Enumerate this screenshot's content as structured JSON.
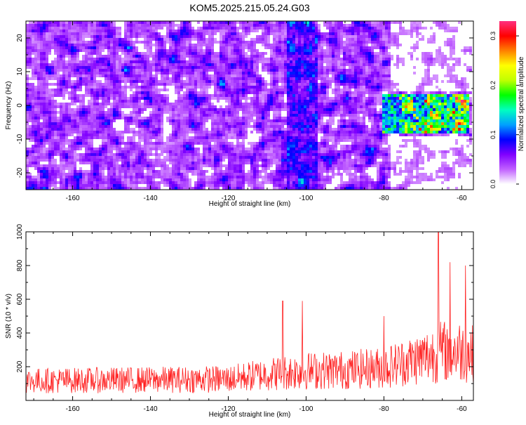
{
  "title": "KOM5.2025.215.05.24.G03",
  "chart_data": [
    {
      "type": "heatmap",
      "xlabel": "Height of straight line (km)",
      "ylabel": "Frequency (Hz)",
      "xlim": [
        -172,
        -57
      ],
      "ylim": [
        -25,
        25
      ],
      "x_ticks": [
        -160,
        -140,
        -120,
        -100,
        -80,
        -60
      ],
      "y_ticks": [
        -20,
        -10,
        0,
        10,
        20
      ],
      "colorbar": {
        "label": "Normalized spectral amplitude",
        "range": [
          0,
          0.33
        ],
        "ticks": [
          "0.0",
          "0.1",
          "0.2",
          "0.3"
        ],
        "colormap": [
          "#ffffff",
          "#c060ff",
          "#8000ff",
          "#0000ff",
          "#00a0ff",
          "#00ffc0",
          "#00ff00",
          "#c0ff00",
          "#ffff00",
          "#ff8000",
          "#ff0000",
          "#ff3080"
        ]
      },
      "features": [
        {
          "description_x_km": [
            -80,
            -58
          ],
          "freq_hz": [
            -8,
            3
          ],
          "amplitude": 0.3
        },
        {
          "description_x_km": [
            -105,
            -97
          ],
          "freq_hz": [
            -25,
            25
          ],
          "amplitude": 0.15
        }
      ]
    },
    {
      "type": "line",
      "xlabel": "Height of straight line (km)",
      "ylabel": "SNR (10 * v/v)",
      "xlim": [
        -172,
        -57
      ],
      "ylim": [
        0,
        1000
      ],
      "x_ticks": [
        -160,
        -140,
        -120,
        -100,
        -80,
        -60
      ],
      "y_ticks": [
        200,
        400,
        600,
        800,
        1000
      ],
      "series": [
        {
          "color": "#ff2020",
          "baseline_points": [
            [
              -172,
              120
            ],
            [
              -140,
              125
            ],
            [
              -120,
              130
            ],
            [
              -110,
              160
            ],
            [
              -100,
              180
            ],
            [
              -90,
              185
            ],
            [
              -80,
              200
            ],
            [
              -75,
              230
            ],
            [
              -70,
              260
            ],
            [
              -65,
              300
            ],
            [
              -60,
              300
            ],
            [
              -57,
              280
            ]
          ],
          "peaks": [
            [
              -106,
              590
            ],
            [
              -101,
              590
            ],
            [
              -80,
              500
            ],
            [
              -66,
              1000
            ],
            [
              -63,
              820
            ],
            [
              -59,
              800
            ]
          ]
        }
      ]
    }
  ]
}
